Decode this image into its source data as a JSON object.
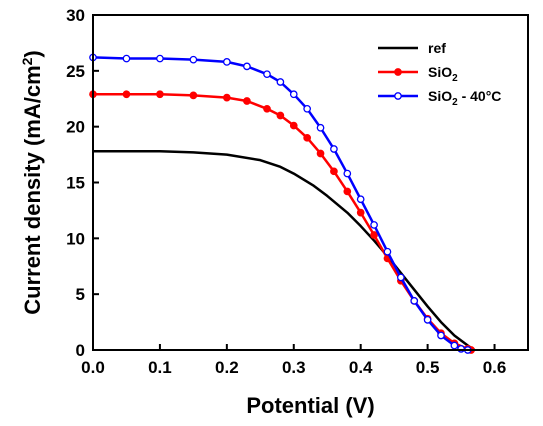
{
  "chart_data": {
    "type": "line",
    "xlabel": "Potential (V)",
    "ylabel": {
      "main": "Current density (mA/cm",
      "sup": "2",
      "close": ")"
    },
    "xlim": [
      0.0,
      0.65
    ],
    "ylim": [
      0,
      30
    ],
    "xticks": [
      0.0,
      0.1,
      0.2,
      0.3,
      0.4,
      0.5,
      0.6
    ],
    "xtick_labels": [
      "0.0",
      "0.1",
      "0.2",
      "0.3",
      "0.4",
      "0.5",
      "0.6"
    ],
    "yticks": [
      0,
      5,
      10,
      15,
      20,
      25,
      30
    ],
    "ytick_labels": [
      "0",
      "5",
      "10",
      "15",
      "20",
      "25",
      "30"
    ],
    "grid": false,
    "legend_position": "top-right",
    "series": [
      {
        "name": "ref",
        "legend_parts": {
          "base": "ref",
          "sub": "",
          "suffix": ""
        },
        "color": "#000000",
        "marker": "none",
        "x": [
          0.0,
          0.05,
          0.1,
          0.15,
          0.2,
          0.25,
          0.28,
          0.3,
          0.33,
          0.35,
          0.38,
          0.4,
          0.42,
          0.44,
          0.46,
          0.48,
          0.5,
          0.52,
          0.54,
          0.56,
          0.57
        ],
        "y": [
          17.8,
          17.8,
          17.8,
          17.7,
          17.5,
          17.0,
          16.4,
          15.8,
          14.7,
          13.8,
          12.3,
          11.1,
          9.8,
          8.4,
          6.9,
          5.4,
          3.9,
          2.5,
          1.3,
          0.4,
          0.0
        ]
      },
      {
        "name": "SiO2",
        "legend_parts": {
          "base": "SiO",
          "sub": "2",
          "suffix": ""
        },
        "color": "#ff0000",
        "marker": "filled-circle",
        "x": [
          0.0,
          0.05,
          0.1,
          0.15,
          0.2,
          0.23,
          0.26,
          0.28,
          0.3,
          0.32,
          0.34,
          0.36,
          0.38,
          0.4,
          0.42,
          0.44,
          0.46,
          0.48,
          0.5,
          0.52,
          0.54,
          0.56,
          0.565
        ],
        "y": [
          22.9,
          22.9,
          22.9,
          22.8,
          22.6,
          22.3,
          21.6,
          21.0,
          20.1,
          19.0,
          17.6,
          16.0,
          14.2,
          12.3,
          10.3,
          8.2,
          6.2,
          4.4,
          2.8,
          1.5,
          0.6,
          0.1,
          0.0
        ]
      },
      {
        "name": "SiO2 - 40°C",
        "legend_parts": {
          "base": "SiO",
          "sub": "2",
          "suffix": " - 40°C"
        },
        "color": "#0000ff",
        "marker": "open-circle",
        "x": [
          0.0,
          0.05,
          0.1,
          0.15,
          0.2,
          0.23,
          0.26,
          0.28,
          0.3,
          0.32,
          0.34,
          0.36,
          0.38,
          0.4,
          0.42,
          0.44,
          0.46,
          0.48,
          0.5,
          0.52,
          0.54,
          0.55,
          0.56
        ],
        "y": [
          26.2,
          26.1,
          26.1,
          26.0,
          25.8,
          25.4,
          24.7,
          24.0,
          22.9,
          21.6,
          19.9,
          18.0,
          15.8,
          13.5,
          11.2,
          8.8,
          6.5,
          4.4,
          2.7,
          1.3,
          0.4,
          0.1,
          0.0
        ]
      }
    ]
  }
}
